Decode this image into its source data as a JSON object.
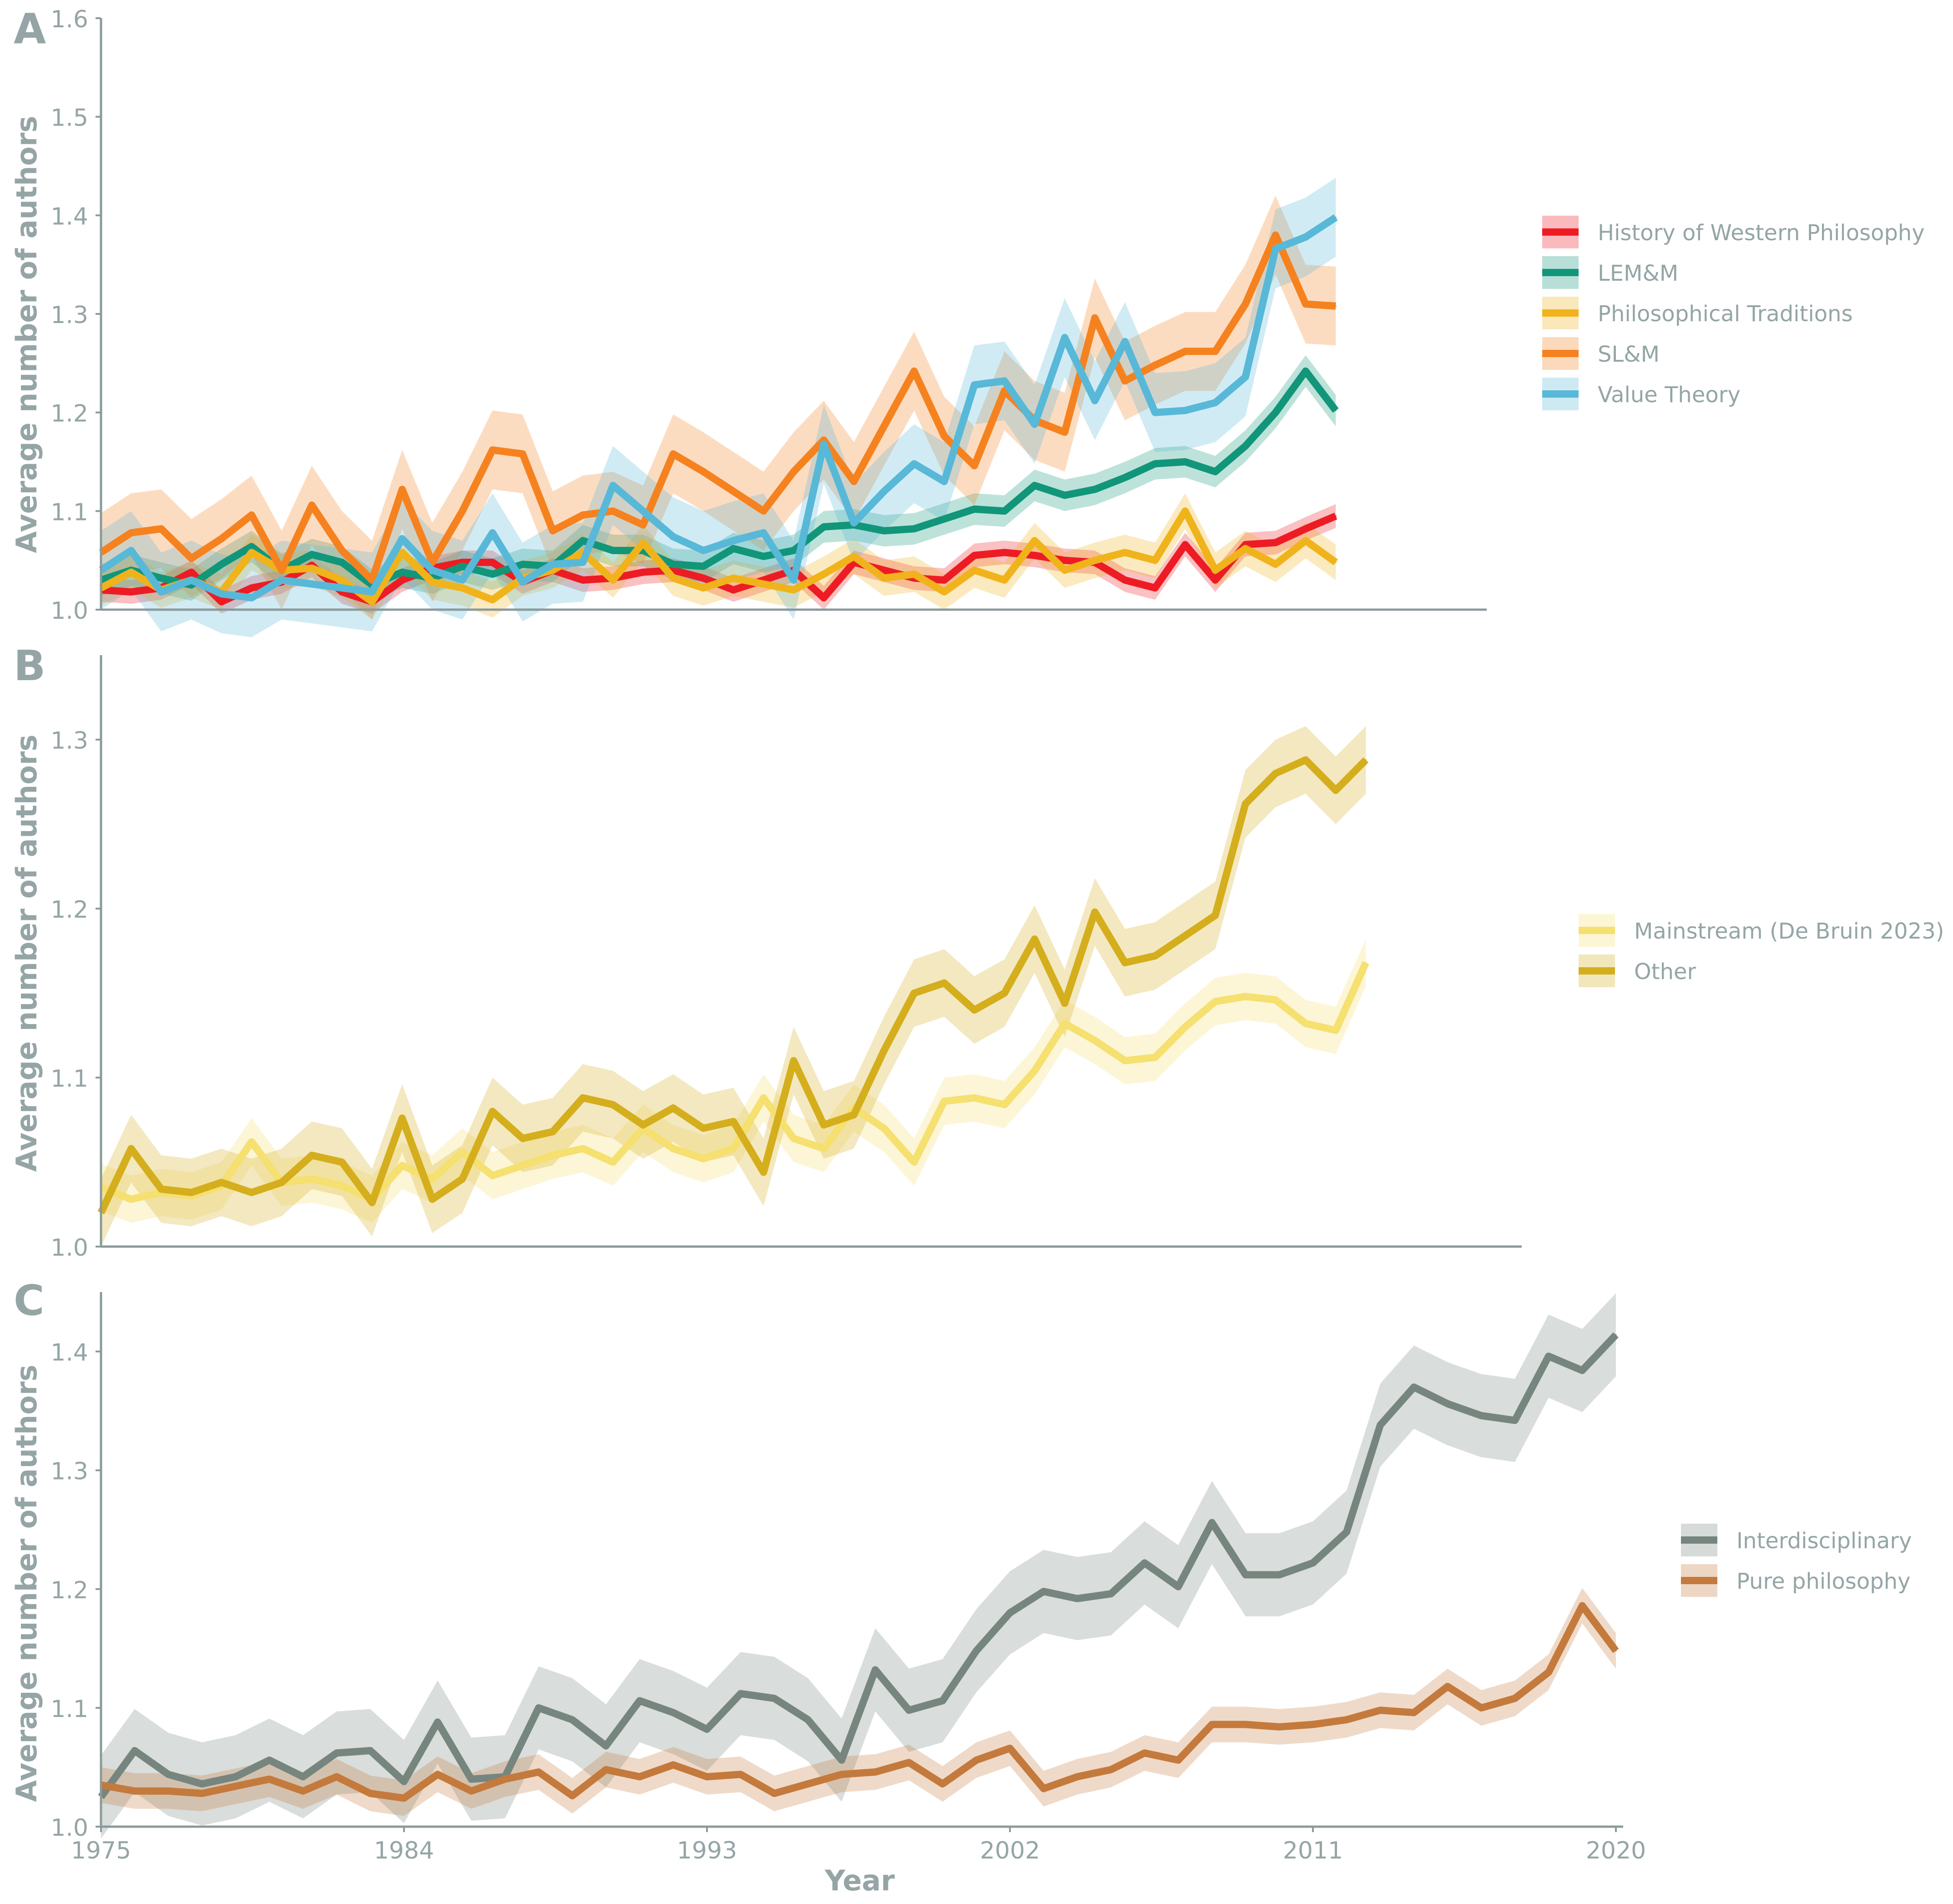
{
  "chart_data": [
    {
      "panel_label": "A",
      "type": "line",
      "ylabel": "Average number of authors",
      "ylim": [
        1.0,
        1.6
      ],
      "yticks": [
        "1.0",
        "1.1",
        "1.2",
        "1.3",
        "1.4",
        "1.5",
        "1.6"
      ],
      "xlim": [
        1975,
        2016
      ],
      "legend_position": "right",
      "x": [
        1975,
        1976,
        1977,
        1978,
        1979,
        1980,
        1981,
        1982,
        1983,
        1984,
        1985,
        1986,
        1987,
        1988,
        1989,
        1990,
        1991,
        1992,
        1993,
        1994,
        1995,
        1996,
        1997,
        1998,
        1999,
        2000,
        2001,
        2002,
        2003,
        2004,
        2005,
        2006,
        2007,
        2008,
        2009,
        2010,
        2011,
        2012,
        2013,
        2014,
        2015,
        2016
      ],
      "series": [
        {
          "name": "History of Western Philosophy",
          "color": "#ed1c24",
          "band": 0.012,
          "values": [
            1.02,
            1.018,
            1.022,
            1.038,
            1.008,
            1.022,
            1.028,
            1.045,
            1.018,
            1.008,
            1.03,
            1.042,
            1.048,
            1.048,
            1.028,
            1.04,
            1.03,
            1.032,
            1.038,
            1.04,
            1.032,
            1.02,
            1.03,
            1.04,
            1.012,
            1.048,
            1.04,
            1.032,
            1.03,
            1.055,
            1.058,
            1.055,
            1.05,
            1.048,
            1.03,
            1.022,
            1.066,
            1.03,
            1.066,
            1.068,
            1.082,
            1.095
          ]
        },
        {
          "name": "LEM&M",
          "color": "#11967a",
          "band": 0.016,
          "values": [
            1.03,
            1.04,
            1.032,
            1.025,
            1.046,
            1.064,
            1.04,
            1.056,
            1.048,
            1.025,
            1.038,
            1.032,
            1.044,
            1.036,
            1.046,
            1.044,
            1.07,
            1.06,
            1.06,
            1.046,
            1.044,
            1.062,
            1.054,
            1.06,
            1.084,
            1.086,
            1.08,
            1.082,
            1.092,
            1.102,
            1.1,
            1.126,
            1.116,
            1.122,
            1.134,
            1.148,
            1.15,
            1.14,
            1.166,
            1.2,
            1.242,
            1.202
          ]
        },
        {
          "name": "Philosophical Traditions",
          "color": "#f0b31b",
          "band": 0.018,
          "values": [
            1.022,
            1.038,
            1.02,
            1.03,
            1.018,
            1.058,
            1.04,
            1.042,
            1.03,
            1.008,
            1.058,
            1.028,
            1.022,
            1.01,
            1.032,
            1.04,
            1.058,
            1.03,
            1.068,
            1.032,
            1.022,
            1.032,
            1.026,
            1.02,
            1.036,
            1.054,
            1.032,
            1.036,
            1.018,
            1.04,
            1.03,
            1.07,
            1.04,
            1.05,
            1.058,
            1.05,
            1.1,
            1.04,
            1.062,
            1.046,
            1.07,
            1.048
          ]
        },
        {
          "name": "SL&M",
          "color": "#f5821f",
          "band": 0.04,
          "values": [
            1.058,
            1.078,
            1.082,
            1.052,
            1.072,
            1.096,
            1.04,
            1.106,
            1.06,
            1.03,
            1.122,
            1.048,
            1.1,
            1.162,
            1.158,
            1.08,
            1.096,
            1.1,
            1.086,
            1.158,
            1.14,
            1.12,
            1.1,
            1.14,
            1.172,
            1.13,
            1.186,
            1.242,
            1.176,
            1.146,
            1.222,
            1.192,
            1.18,
            1.296,
            1.232,
            1.248,
            1.262,
            1.262,
            1.31,
            1.38,
            1.31,
            1.308
          ]
        },
        {
          "name": "Value Theory",
          "color": "#58b8d8",
          "band": 0.04,
          "values": [
            1.04,
            1.06,
            1.018,
            1.03,
            1.016,
            1.012,
            1.03,
            1.026,
            1.022,
            1.018,
            1.072,
            1.04,
            1.03,
            1.078,
            1.028,
            1.046,
            1.048,
            1.126,
            1.1,
            1.074,
            1.06,
            1.07,
            1.078,
            1.03,
            1.168,
            1.088,
            1.12,
            1.148,
            1.13,
            1.228,
            1.232,
            1.188,
            1.276,
            1.212,
            1.272,
            1.2,
            1.202,
            1.21,
            1.236,
            1.366,
            1.378,
            1.398
          ]
        }
      ]
    },
    {
      "panel_label": "B",
      "type": "line",
      "ylabel": "Average number of authors",
      "ylim": [
        1.0,
        1.35
      ],
      "yticks": [
        "1.0",
        "1.1",
        "1.2",
        "1.3"
      ],
      "xlim": [
        1975,
        2017
      ],
      "legend_position": "right",
      "x": [
        1975,
        1976,
        1977,
        1978,
        1979,
        1980,
        1981,
        1982,
        1983,
        1984,
        1985,
        1986,
        1987,
        1988,
        1989,
        1990,
        1991,
        1992,
        1993,
        1994,
        1995,
        1996,
        1997,
        1998,
        1999,
        2000,
        2001,
        2002,
        2003,
        2004,
        2005,
        2006,
        2007,
        2008,
        2009,
        2010,
        2011,
        2012,
        2013,
        2014,
        2015,
        2016,
        2017
      ],
      "series": [
        {
          "name": "Mainstream (De Bruin 2023)",
          "color": "#f5e070",
          "band": 0.014,
          "values": [
            1.035,
            1.028,
            1.032,
            1.03,
            1.036,
            1.062,
            1.038,
            1.04,
            1.036,
            1.028,
            1.048,
            1.04,
            1.056,
            1.042,
            1.048,
            1.054,
            1.058,
            1.05,
            1.07,
            1.058,
            1.052,
            1.058,
            1.088,
            1.064,
            1.058,
            1.082,
            1.07,
            1.05,
            1.086,
            1.088,
            1.084,
            1.104,
            1.132,
            1.122,
            1.11,
            1.112,
            1.13,
            1.145,
            1.148,
            1.146,
            1.132,
            1.128,
            1.168
          ]
        },
        {
          "name": "Other",
          "color": "#d4ae1c",
          "band": 0.02,
          "values": [
            1.02,
            1.058,
            1.034,
            1.032,
            1.038,
            1.032,
            1.038,
            1.054,
            1.05,
            1.026,
            1.076,
            1.028,
            1.04,
            1.08,
            1.064,
            1.068,
            1.088,
            1.084,
            1.072,
            1.082,
            1.07,
            1.074,
            1.044,
            1.11,
            1.072,
            1.078,
            1.116,
            1.15,
            1.156,
            1.14,
            1.15,
            1.182,
            1.144,
            1.198,
            1.168,
            1.172,
            1.184,
            1.196,
            1.262,
            1.28,
            1.288,
            1.27,
            1.288
          ]
        }
      ]
    },
    {
      "panel_label": "C",
      "type": "line",
      "ylabel": "Average number of authors",
      "xlabel": "Year",
      "ylim": [
        1.0,
        1.45
      ],
      "yticks": [
        "1.0",
        "1.1",
        "1.2",
        "1.3",
        "1.4"
      ],
      "xlim": [
        1975,
        2020
      ],
      "xticks": [
        "1975",
        "1984",
        "1993",
        "2002",
        "2011",
        "2020"
      ],
      "legend_position": "right",
      "x": [
        1975,
        1976,
        1977,
        1978,
        1979,
        1980,
        1981,
        1982,
        1983,
        1984,
        1985,
        1986,
        1987,
        1988,
        1989,
        1990,
        1991,
        1992,
        1993,
        1994,
        1995,
        1996,
        1997,
        1998,
        1999,
        2000,
        2001,
        2002,
        2003,
        2004,
        2005,
        2006,
        2007,
        2008,
        2009,
        2010,
        2011,
        2012,
        2013,
        2014,
        2015,
        2016,
        2017,
        2018,
        2019,
        2020
      ],
      "series": [
        {
          "name": "Interdisciplinary",
          "color": "#76867e",
          "band": 0.035,
          "values": [
            1.025,
            1.064,
            1.044,
            1.036,
            1.042,
            1.056,
            1.042,
            1.062,
            1.064,
            1.038,
            1.088,
            1.04,
            1.042,
            1.1,
            1.09,
            1.068,
            1.106,
            1.096,
            1.082,
            1.112,
            1.108,
            1.09,
            1.056,
            1.132,
            1.098,
            1.106,
            1.148,
            1.18,
            1.198,
            1.192,
            1.196,
            1.222,
            1.202,
            1.256,
            1.212,
            1.212,
            1.222,
            1.248,
            1.338,
            1.37,
            1.356,
            1.346,
            1.342,
            1.396,
            1.384,
            1.414
          ]
        },
        {
          "name": "Pure philosophy",
          "color": "#c47a3c",
          "band": 0.015,
          "values": [
            1.035,
            1.03,
            1.03,
            1.028,
            1.034,
            1.04,
            1.03,
            1.042,
            1.028,
            1.024,
            1.044,
            1.03,
            1.04,
            1.046,
            1.026,
            1.048,
            1.042,
            1.052,
            1.042,
            1.044,
            1.028,
            1.036,
            1.044,
            1.046,
            1.054,
            1.036,
            1.056,
            1.066,
            1.032,
            1.042,
            1.048,
            1.062,
            1.056,
            1.086,
            1.086,
            1.084,
            1.086,
            1.09,
            1.098,
            1.096,
            1.118,
            1.1,
            1.108,
            1.13,
            1.186,
            1.148
          ]
        }
      ]
    }
  ]
}
